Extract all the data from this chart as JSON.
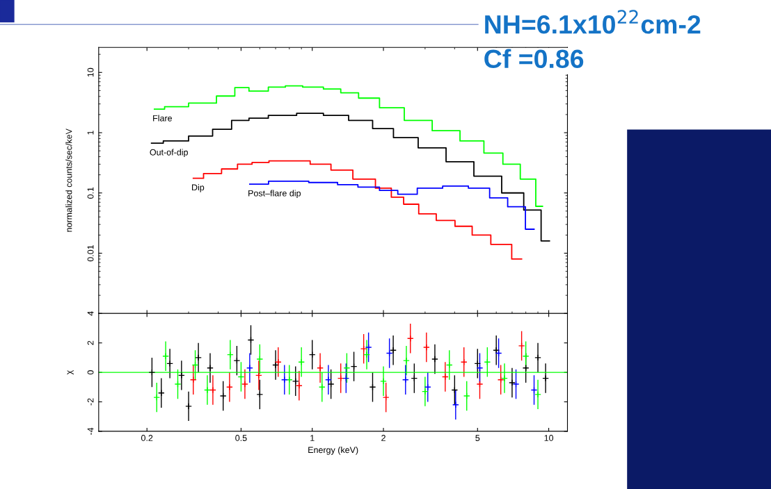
{
  "chart_data": [
    {
      "type": "step",
      "ylabel": "normalized counts/sec/keV",
      "log": "xy",
      "xlim": [
        0.125,
        12
      ],
      "ylim": [
        0.001,
        26
      ],
      "xticks": [
        {
          "value": 0.2,
          "label": null
        },
        {
          "value": 0.5,
          "label": null
        },
        {
          "value": 1,
          "label": null
        },
        {
          "value": 2,
          "label": null
        },
        {
          "value": 5,
          "label": null
        },
        {
          "value": 10,
          "label": null
        }
      ],
      "yticks": [
        0.01,
        0.1,
        1,
        10
      ],
      "tick_labels": "y",
      "grid": false,
      "legend": false,
      "annotations": [
        "NH=6.1x10$^{22}$cm-2",
        "Cf =0.86"
      ],
      "series": [
        {
          "name": "Flare",
          "color": "#00ff00",
          "x": [
            0.215,
            0.26,
            0.34,
            0.447,
            0.494,
            0.586,
            0.718,
            0.822,
            1,
            1.23,
            1.41,
            1.73,
            2.12,
            2.78,
            3.65,
            4.78,
            5.86,
            6.94,
            8.22,
            9.41
          ],
          "values": [
            2.46,
            2.7,
            3.1,
            4.06,
            5.6,
            4.9,
            5.7,
            6.0,
            5.7,
            5.3,
            4.6,
            3.75,
            2.6,
            1.6,
            1.08,
            0.73,
            0.46,
            0.3,
            0.17,
            0.06
          ]
        },
        {
          "name": "Out-of-dip",
          "color": "#000000",
          "x": [
            0.209,
            0.26,
            0.34,
            0.418,
            0.494,
            0.586,
            0.718,
            1,
            1.23,
            1.62,
            1.98,
            2.43,
            3.18,
            4.18,
            5.47,
            7.18,
            8.5,
            10.07
          ],
          "values": [
            0.67,
            0.73,
            0.88,
            1.14,
            1.6,
            1.74,
            1.94,
            2.1,
            1.94,
            1.6,
            1.17,
            0.83,
            0.56,
            0.33,
            0.19,
            0.1,
            0.052,
            0.016
          ]
        },
        {
          "name": "Dip",
          "color": "#ff0000",
          "x": [
            0.314,
            0.38,
            0.447,
            0.519,
            0.594,
            0.718,
            0.88,
            1.08,
            1.32,
            1.65,
            2.05,
            2.27,
            2.6,
            3.04,
            3.65,
            4.38,
            5.11,
            6.27,
            7.68
          ],
          "values": [
            0.175,
            0.21,
            0.25,
            0.3,
            0.32,
            0.34,
            0.34,
            0.3,
            0.24,
            0.17,
            0.12,
            0.085,
            0.065,
            0.045,
            0.035,
            0.028,
            0.02,
            0.014,
            0.008
          ]
        },
        {
          "name": "Post–flare dip",
          "color": "#0000ff",
          "x": [
            0.544,
            0.763,
            1.17,
            1.39,
            1.73,
            2.12,
            2.48,
            3.08,
            4.04,
            5.11,
            6.14,
            7.27,
            8.67
          ],
          "values": [
            0.14,
            0.157,
            0.149,
            0.137,
            0.125,
            0.11,
            0.095,
            0.12,
            0.13,
            0.12,
            0.083,
            0.059,
            0.025
          ]
        }
      ]
    },
    {
      "type": "scatter",
      "xlabel": "Energy (keV)",
      "ylabel": "χ",
      "log": "x",
      "xlim": [
        0.125,
        12
      ],
      "ylim": [
        -4,
        4
      ],
      "xticks": [
        0.2,
        0.5,
        1,
        2,
        5,
        10
      ],
      "yticks": [
        -4,
        -2,
        0,
        2,
        4
      ],
      "grid": false,
      "legend": false,
      "marker": "cross",
      "ref_lines": [
        {
          "axis": "y",
          "value": 0,
          "color": "#00ff00"
        }
      ],
      "series": [
        {
          "color": "#000000",
          "x": [
            0.21,
            0.23,
            0.25,
            0.28,
            0.3,
            0.33,
            0.37,
            0.42,
            0.48,
            0.55,
            0.6,
            0.7,
            0.85,
            1.0,
            1.2,
            1.5,
            1.8,
            2.2,
            2.7,
            3.3,
            4.0,
            5.0,
            6.0,
            7.0,
            8.0,
            9.0,
            9.7
          ],
          "values": [
            0,
            -1.4,
            0.6,
            -0.2,
            -2.3,
            1.0,
            0.3,
            -1.6,
            0.8,
            2.2,
            -1.5,
            0.5,
            -0.6,
            1.2,
            -0.8,
            0.4,
            -1.0,
            1.5,
            -0.4,
            0.9,
            -1.2,
            0.6,
            1.5,
            -0.7,
            0.3,
            1.0,
            -0.4
          ],
          "errors": [
            1,
            1,
            1,
            1,
            1,
            1,
            1,
            1,
            1,
            1,
            1,
            1,
            1,
            1,
            1,
            1,
            1,
            1,
            1,
            1,
            1,
            1,
            1,
            1,
            1,
            1,
            1
          ]
        },
        {
          "color": "#00ff00",
          "x": [
            0.22,
            0.24,
            0.27,
            0.32,
            0.36,
            0.45,
            0.5,
            0.6,
            0.8,
            0.9,
            1.1,
            1.4,
            1.7,
            2.0,
            2.5,
            3.0,
            3.8,
            4.5,
            5.5,
            6.5,
            8.0,
            9.0
          ],
          "values": [
            -1.7,
            1.1,
            -0.8,
            0.5,
            -1.2,
            1.2,
            -0.3,
            0.9,
            -0.5,
            0.7,
            -1.0,
            0.3,
            1.2,
            -0.6,
            0.8,
            -1.3,
            0.5,
            -1.6,
            0.7,
            -0.4,
            1.1,
            -1.5
          ],
          "errors": [
            1,
            1,
            1,
            1,
            1,
            1,
            1,
            1,
            1,
            1,
            1,
            1,
            1,
            1,
            1,
            1,
            1,
            1,
            1,
            1,
            1,
            1
          ]
        },
        {
          "color": "#ff0000",
          "x": [
            0.314,
            0.38,
            0.447,
            0.519,
            0.594,
            0.718,
            0.88,
            1.08,
            1.32,
            1.65,
            2.05,
            2.6,
            3.04,
            3.65,
            4.38,
            5.11,
            6.27,
            7.68
          ],
          "values": [
            -0.5,
            -1.2,
            -1.0,
            -0.8,
            -0.2,
            0.7,
            -0.9,
            0.3,
            -0.4,
            1.6,
            -1.7,
            2.3,
            1.7,
            -0.3,
            0.7,
            -0.8,
            -0.5,
            1.8
          ],
          "errors": [
            1,
            1,
            1,
            1,
            1,
            1,
            1,
            1,
            1,
            1,
            1,
            1,
            1,
            1,
            1,
            1,
            1,
            1
          ]
        },
        {
          "color": "#0000ff",
          "x": [
            0.544,
            0.763,
            1.17,
            1.39,
            1.73,
            2.12,
            2.48,
            3.08,
            4.04,
            5.11,
            6.14,
            7.27,
            8.67
          ],
          "values": [
            0.3,
            -0.5,
            -0.5,
            -0.4,
            1.7,
            1.3,
            -0.5,
            -1.0,
            -2.2,
            0.3,
            1.3,
            -0.8,
            -1.2
          ],
          "errors": [
            1,
            1,
            1,
            1,
            1,
            1,
            1,
            1,
            1,
            1,
            1,
            1,
            1
          ]
        }
      ]
    }
  ]
}
